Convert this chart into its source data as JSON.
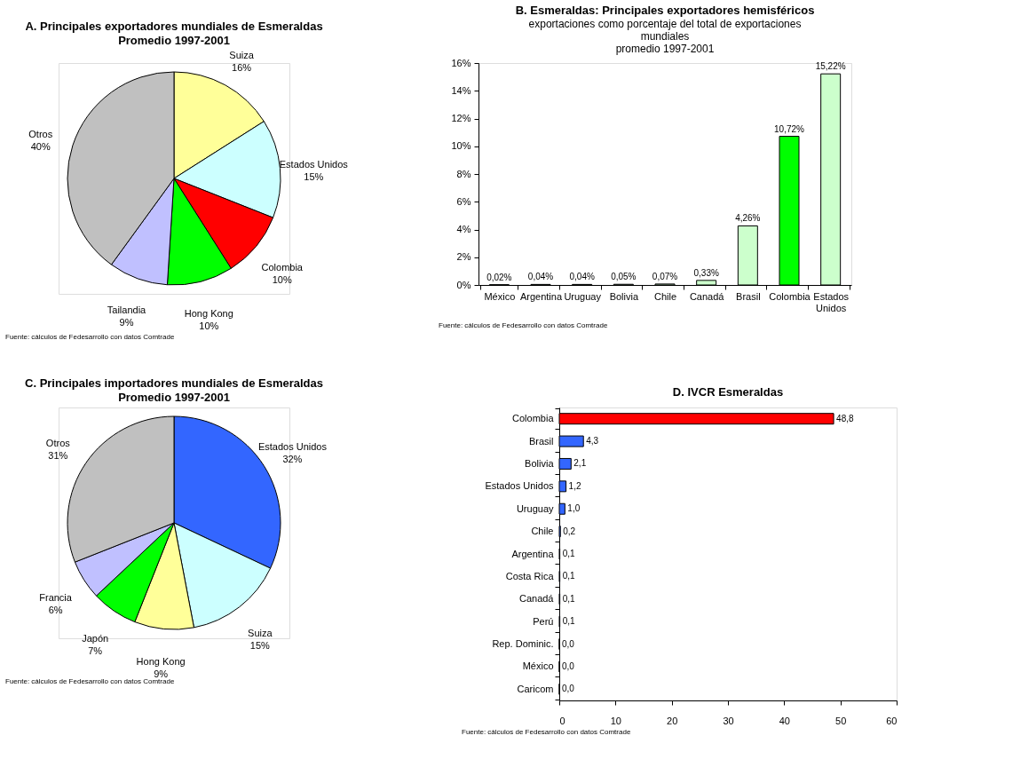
{
  "chart_data": [
    {
      "type": "pie",
      "title": "A. Principales exportadores mundiales de Esmeraldas",
      "subtitle": "Promedio 1997-2001",
      "categories": [
        "Suiza",
        "Estados Unidos",
        "Colombia",
        "Hong Kong",
        "Tailandia",
        "Otros"
      ],
      "values": [
        16,
        15,
        10,
        10,
        9,
        40
      ],
      "value_labels": [
        "16%",
        "15%",
        "10%",
        "10%",
        "9%",
        "40%"
      ],
      "colors": [
        "#ffff99",
        "#ccffff",
        "#ff0000",
        "#00ff00",
        "#c0c0ff",
        "#c0c0c0"
      ],
      "annotations": [
        "Fuente: cálculos de Fedesarrollo con datos Comtrade"
      ]
    },
    {
      "type": "bar",
      "title": "B. Esmeraldas: Principales exportadores hemisféricos",
      "subtitle": "exportaciones como porcentaje del total de exportaciones\nmundiales\npromedio 1997-2001",
      "categories": [
        "México",
        "Argentina",
        "Uruguay",
        "Bolivia",
        "Chile",
        "Canadá",
        "Brasil",
        "Colombia",
        "Estados Unidos"
      ],
      "values": [
        0.02,
        0.04,
        0.04,
        0.05,
        0.07,
        0.33,
        4.26,
        10.72,
        15.22
      ],
      "value_labels": [
        "0,02%",
        "0,04%",
        "0,04%",
        "0,05%",
        "0,07%",
        "0,33%",
        "4,26%",
        "10,72%",
        "15,22%"
      ],
      "colors": [
        "#ccffcc",
        "#ccffcc",
        "#ccffcc",
        "#ccffcc",
        "#ccffcc",
        "#ccffcc",
        "#ccffcc",
        "#00ff00",
        "#ccffcc"
      ],
      "ylim": [
        0,
        16
      ],
      "yticks": [
        {
          "value": 0,
          "label": "0%"
        },
        {
          "value": 2,
          "label": "2%"
        },
        {
          "value": 4,
          "label": "4%"
        },
        {
          "value": 6,
          "label": "6%"
        },
        {
          "value": 8,
          "label": "8%"
        },
        {
          "value": 10,
          "label": "10%"
        },
        {
          "value": 12,
          "label": "12%"
        },
        {
          "value": 14,
          "label": "14%"
        },
        {
          "value": 16,
          "label": "16%"
        }
      ],
      "grid": false,
      "annotations": [
        "Fuente: cálculos de Fedesarrollo con datos Comtrade"
      ]
    },
    {
      "type": "pie",
      "title": "C. Principales importadores mundiales de Esmeraldas",
      "subtitle": "Promedio 1997-2001",
      "categories": [
        "Estados Unidos",
        "Suiza",
        "Hong Kong",
        "Japón",
        "Francia",
        "Otros"
      ],
      "values": [
        32,
        15,
        9,
        7,
        6,
        31
      ],
      "value_labels": [
        "32%",
        "15%",
        "9%",
        "7%",
        "6%",
        "31%"
      ],
      "colors": [
        "#3366ff",
        "#ccffff",
        "#ffff99",
        "#00ff00",
        "#c0c0ff",
        "#c0c0c0"
      ],
      "annotations": [
        "Fuente: cálculos de Fedesarrollo con datos Comtrade"
      ]
    },
    {
      "type": "bar",
      "orientation": "horizontal",
      "title": "D. IVCR Esmeraldas",
      "categories": [
        "Colombia",
        "Brasil",
        "Bolivia",
        "Estados Unidos",
        "Uruguay",
        "Chile",
        "Argentina",
        "Costa Rica",
        "Canadá",
        "Perú",
        "Rep. Dominic.",
        "México",
        "Caricom"
      ],
      "values": [
        48.8,
        4.3,
        2.1,
        1.2,
        1.0,
        0.2,
        0.1,
        0.1,
        0.1,
        0.1,
        0.0,
        0.0,
        0.0
      ],
      "value_labels": [
        "48,8",
        "4,3",
        "2,1",
        "1,2",
        "1,0",
        "0,2",
        "0,1",
        "0,1",
        "0,1",
        "0,1",
        "0,0",
        "0,0",
        "0,0"
      ],
      "colors": [
        "#ff0000",
        "#3366ff",
        "#3366ff",
        "#3366ff",
        "#3366ff",
        "#3366ff",
        "#3366ff",
        "#3366ff",
        "#3366ff",
        "#3366ff",
        "#3366ff",
        "#3366ff",
        "#3366ff"
      ],
      "xlim": [
        0,
        60
      ],
      "xticks": [
        0,
        10,
        20,
        30,
        40,
        50,
        60
      ],
      "grid": false,
      "annotations": [
        "Fuente: cálculos de Fedesarrollo con datos Comtrade"
      ]
    }
  ]
}
